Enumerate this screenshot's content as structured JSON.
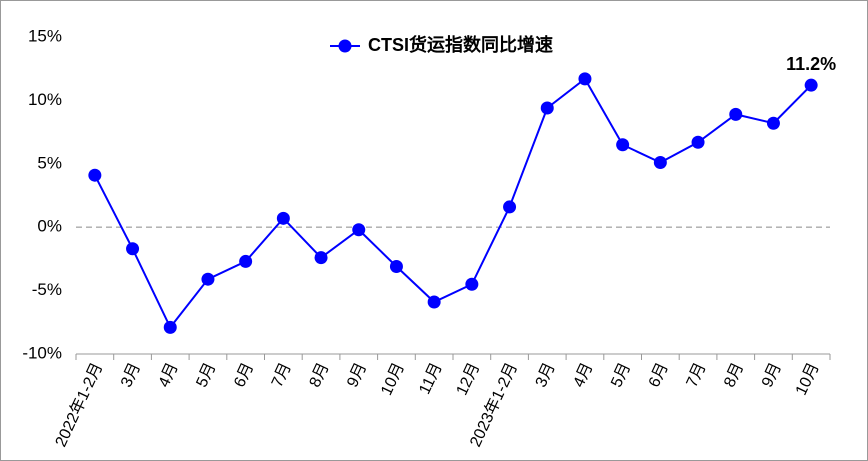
{
  "chart_data": {
    "type": "line",
    "categories": [
      "2022年1-2月",
      "3月",
      "4月",
      "5月",
      "6月",
      "7月",
      "8月",
      "9月",
      "10月",
      "11月",
      "12月",
      "2023年1-2月",
      "3月",
      "4月",
      "5月",
      "6月",
      "7月",
      "8月",
      "9月",
      "10月"
    ],
    "series": [
      {
        "name": "CTSI货运指数同比增速",
        "color": "#0000ff",
        "values": [
          4.1,
          -1.7,
          -7.9,
          -4.1,
          -2.7,
          0.7,
          -2.4,
          -0.2,
          -3.1,
          -5.9,
          -4.5,
          1.6,
          9.4,
          11.7,
          6.5,
          5.1,
          6.7,
          8.9,
          8.2,
          11.2
        ],
        "value_labels": [
          null,
          null,
          null,
          null,
          null,
          null,
          null,
          null,
          null,
          null,
          null,
          null,
          null,
          null,
          null,
          null,
          null,
          null,
          null,
          "11.2%"
        ]
      }
    ],
    "ylim": [
      -10,
      15
    ],
    "yticks": [
      {
        "value": -10,
        "label": "-10%"
      },
      {
        "value": -5,
        "label": "-5%"
      },
      {
        "value": 0,
        "label": "0%"
      },
      {
        "value": 5,
        "label": "5%"
      },
      {
        "value": 10,
        "label": "10%"
      },
      {
        "value": 15,
        "label": "15%"
      }
    ],
    "legend": "top"
  }
}
